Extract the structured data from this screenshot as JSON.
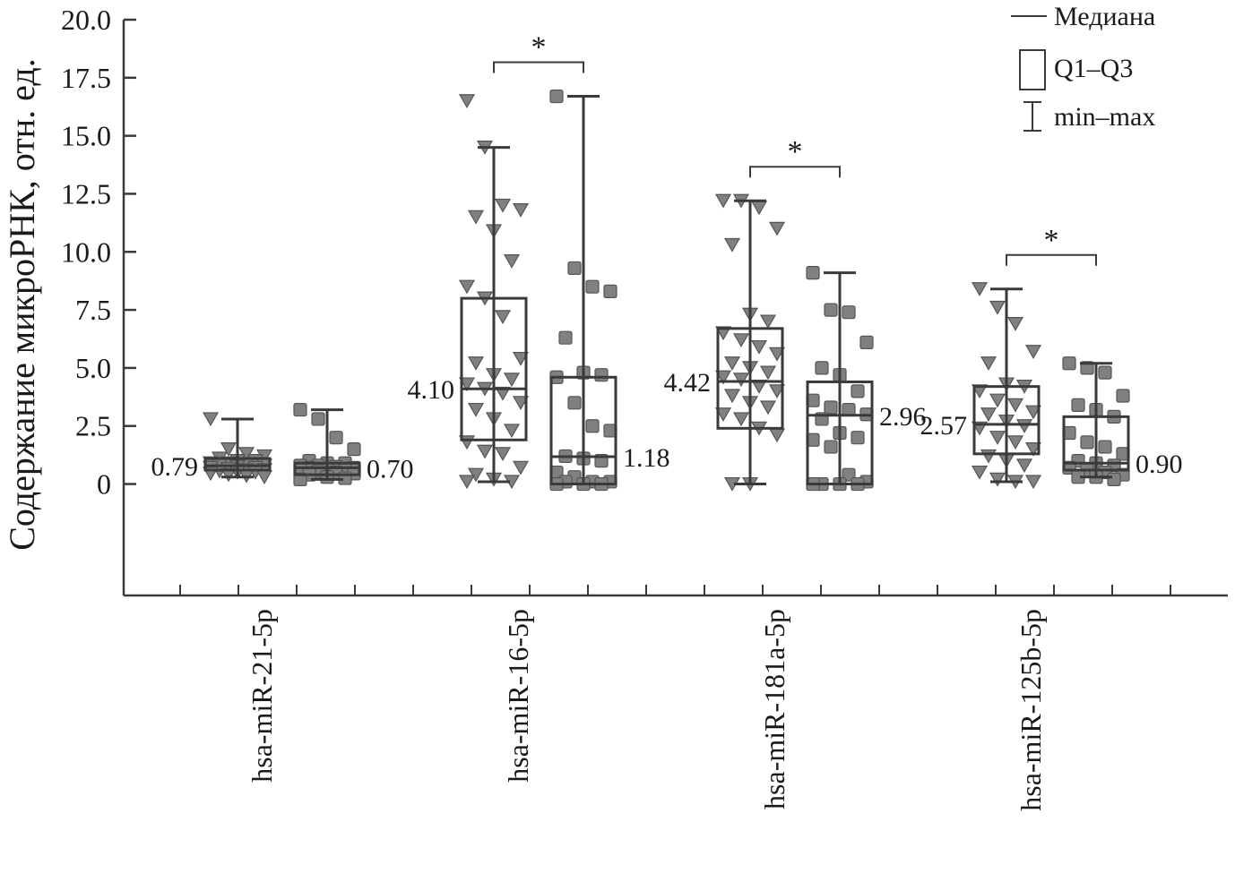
{
  "chart_data": {
    "type": "box",
    "ylabel": "Содержание микроРНК, отн. ед.",
    "ylim": [
      -4.8,
      20
    ],
    "yticks": [
      0,
      2.5,
      {
        "value": 5,
        "label": "5.0"
      },
      7.5,
      {
        "value": 10,
        "label": "10.0"
      },
      12.5,
      {
        "value": 15,
        "label": "15.0"
      },
      17.5,
      {
        "value": 20,
        "label": "20.0"
      }
    ],
    "categories": [
      "hsa-miR-21-5p",
      "hsa-miR-16-5p",
      "hsa-miR-181a-5p",
      "hsa-miR-125b-5p"
    ],
    "significance": [
      null,
      "*",
      "*",
      "*"
    ],
    "legend": {
      "position": "top-right",
      "items": [
        "Медиана",
        "Q1–Q3",
        "min–max"
      ]
    },
    "series": [
      {
        "marker": "triangle",
        "color": "#808080",
        "label_side": "left",
        "boxes": [
          {
            "min": 0.3,
            "q1": 0.6,
            "median": 0.79,
            "median_label": "0.79",
            "q3": 1.1,
            "max": 2.8,
            "points": [
              2.8,
              1.5,
              1.3,
              1.2,
              1.1,
              1.0,
              1.0,
              0.9,
              0.9,
              0.85,
              0.8,
              0.8,
              0.75,
              0.7,
              0.7,
              0.65,
              0.6,
              0.6,
              0.55,
              0.5,
              0.5,
              0.45,
              0.4,
              0.35,
              0.3
            ]
          },
          {
            "min": 0.1,
            "q1": 1.9,
            "median": 4.1,
            "median_label": "4.10",
            "q3": 8.0,
            "max": 14.5,
            "points": [
              16.5,
              14.5,
              12.0,
              11.8,
              11.5,
              10.9,
              9.6,
              8.5,
              8.0,
              7.2,
              5.4,
              5.2,
              4.7,
              4.5,
              4.3,
              4.1,
              3.9,
              3.5,
              3.2,
              2.8,
              2.3,
              1.8,
              1.4,
              1.3,
              0.7,
              0.4,
              0.2,
              0.1,
              0.1
            ]
          },
          {
            "min": 0.0,
            "q1": 2.4,
            "median": 4.42,
            "median_label": "4.42",
            "q3": 6.7,
            "max": 12.2,
            "points": [
              12.2,
              12.2,
              11.9,
              11.0,
              10.3,
              7.3,
              7.0,
              6.5,
              6.2,
              5.9,
              5.6,
              5.2,
              5.0,
              4.8,
              4.6,
              4.5,
              4.2,
              4.0,
              3.8,
              3.5,
              3.3,
              3.0,
              2.8,
              2.4,
              2.1,
              0.0,
              0.0
            ]
          },
          {
            "min": 0.1,
            "q1": 1.3,
            "median": 2.57,
            "median_label": "2.57",
            "q3": 4.2,
            "max": 8.4,
            "points": [
              8.4,
              7.6,
              6.9,
              5.7,
              5.2,
              4.3,
              4.2,
              4.0,
              3.6,
              3.4,
              3.1,
              3.0,
              2.7,
              2.5,
              2.4,
              2.0,
              1.8,
              1.5,
              1.2,
              1.0,
              0.8,
              0.5,
              0.2,
              0.1,
              0.1
            ]
          }
        ]
      },
      {
        "marker": "square",
        "color": "#808080",
        "label_side": "right",
        "boxes": [
          {
            "min": 0.2,
            "q1": 0.4,
            "median": 0.7,
            "median_label": "0.70",
            "q3": 0.9,
            "max": 3.2,
            "points": [
              3.2,
              2.8,
              2.0,
              1.5,
              1.0,
              0.9,
              0.9,
              0.8,
              0.8,
              0.75,
              0.7,
              0.7,
              0.65,
              0.6,
              0.6,
              0.55,
              0.5,
              0.45,
              0.4,
              0.3,
              0.25,
              0.2
            ]
          },
          {
            "min": 0.0,
            "q1": 0.0,
            "median": 1.18,
            "median_label": "1.18",
            "q3": 4.6,
            "max": 16.7,
            "points": [
              16.7,
              9.3,
              8.5,
              8.3,
              6.3,
              4.8,
              4.7,
              4.6,
              3.5,
              2.5,
              2.3,
              1.2,
              1.1,
              1.0,
              0.5,
              0.3,
              0.1,
              0.1,
              0.1,
              0.0,
              0.0,
              0.0
            ]
          },
          {
            "min": 0.0,
            "q1": 0.0,
            "median": 2.96,
            "median_label": "2.96",
            "q3": 4.4,
            "max": 9.1,
            "points": [
              9.1,
              7.5,
              7.4,
              6.1,
              5.0,
              4.7,
              4.0,
              3.6,
              3.3,
              3.2,
              3.0,
              2.8,
              2.2,
              2.0,
              1.9,
              1.6,
              0.4,
              0.1,
              0.0,
              0.0,
              0.0,
              0.0
            ]
          },
          {
            "min": 0.3,
            "q1": 0.6,
            "median": 0.9,
            "median_label": "0.90",
            "q3": 2.9,
            "max": 5.2,
            "points": [
              5.2,
              5.0,
              4.8,
              3.8,
              3.4,
              3.2,
              2.9,
              2.2,
              1.8,
              1.6,
              1.3,
              1.0,
              0.9,
              0.8,
              0.7,
              0.6,
              0.5,
              0.4,
              0.3,
              0.3,
              0.2
            ]
          }
        ]
      }
    ]
  }
}
